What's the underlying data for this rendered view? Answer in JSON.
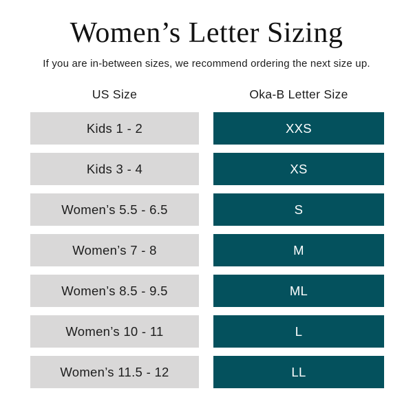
{
  "page": {
    "title": "Women’s Letter Sizing",
    "subtitle": "If you are in-between sizes, we recommend ordering the next size up."
  },
  "table": {
    "headers": {
      "us": "US Size",
      "letter": "Oka-B Letter Size"
    },
    "rows": [
      {
        "us": "Kids 1 - 2",
        "letter": "XXS"
      },
      {
        "us": "Kids 3 - 4",
        "letter": "XS"
      },
      {
        "us": "Women’s 5.5 - 6.5",
        "letter": "S"
      },
      {
        "us": "Women’s 7 - 8",
        "letter": "M"
      },
      {
        "us": "Women’s 8.5 - 9.5",
        "letter": "ML"
      },
      {
        "us": "Women’s 10 - 11",
        "letter": "L"
      },
      {
        "us": "Women’s 11.5 - 12",
        "letter": "LL"
      }
    ]
  },
  "colors": {
    "teal": "#04515d",
    "gray": "#d9d8d8",
    "text": "#1d1d1d"
  },
  "chart_data": {
    "type": "table",
    "title": "Women’s Letter Sizing",
    "subtitle": "If you are in-between sizes, we recommend ordering the next size up.",
    "columns": [
      "US Size",
      "Oka-B Letter Size"
    ],
    "rows": [
      [
        "Kids 1 - 2",
        "XXS"
      ],
      [
        "Kids 3 - 4",
        "XS"
      ],
      [
        "Women’s 5.5 - 6.5",
        "S"
      ],
      [
        "Women’s 7 - 8",
        "M"
      ],
      [
        "Women’s 8.5 - 9.5",
        "ML"
      ],
      [
        "Women’s 10 - 11",
        "L"
      ],
      [
        "Women’s 11.5 - 12",
        "LL"
      ]
    ]
  }
}
